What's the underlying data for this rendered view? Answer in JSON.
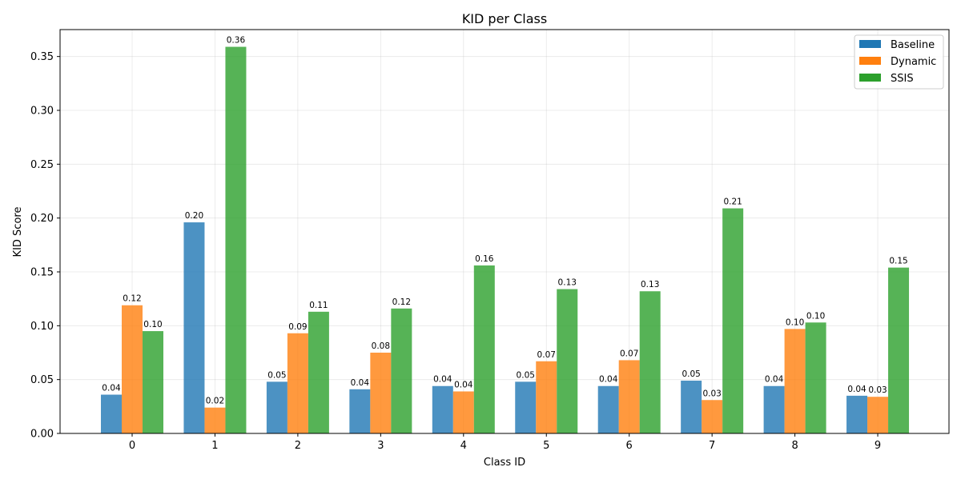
{
  "chart_data": {
    "type": "bar",
    "title": "KID per Class",
    "xlabel": "Class ID",
    "ylabel": "KID Score",
    "categories": [
      "0",
      "1",
      "2",
      "3",
      "4",
      "5",
      "6",
      "7",
      "8",
      "9"
    ],
    "ylim": [
      0,
      0.375
    ],
    "yticks": [
      0.0,
      0.05,
      0.1,
      0.15,
      0.2,
      0.25,
      0.3,
      0.35
    ],
    "ytick_labels": [
      "0.00",
      "0.05",
      "0.10",
      "0.15",
      "0.20",
      "0.25",
      "0.30",
      "0.35"
    ],
    "grid": true,
    "legend_position": "top-right",
    "series": [
      {
        "name": "Baseline",
        "color": "#1f77b4",
        "values": [
          0.036,
          0.196,
          0.048,
          0.041,
          0.044,
          0.048,
          0.044,
          0.049,
          0.044,
          0.035
        ],
        "labels": [
          "0.04",
          "0.20",
          "0.05",
          "0.04",
          "0.04",
          "0.05",
          "0.04",
          "0.05",
          "0.04",
          "0.04"
        ]
      },
      {
        "name": "Dynamic",
        "color": "#ff7f0e",
        "values": [
          0.119,
          0.024,
          0.093,
          0.075,
          0.039,
          0.067,
          0.068,
          0.031,
          0.097,
          0.034
        ],
        "labels": [
          "0.12",
          "0.02",
          "0.09",
          "0.08",
          "0.04",
          "0.07",
          "0.07",
          "0.03",
          "0.10",
          "0.03"
        ]
      },
      {
        "name": "SSIS",
        "color": "#2ca02c",
        "values": [
          0.095,
          0.359,
          0.113,
          0.116,
          0.156,
          0.134,
          0.132,
          0.209,
          0.103,
          0.154
        ],
        "labels": [
          "0.10",
          "0.36",
          "0.11",
          "0.12",
          "0.16",
          "0.13",
          "0.13",
          "0.21",
          "0.10",
          "0.15"
        ]
      }
    ]
  }
}
